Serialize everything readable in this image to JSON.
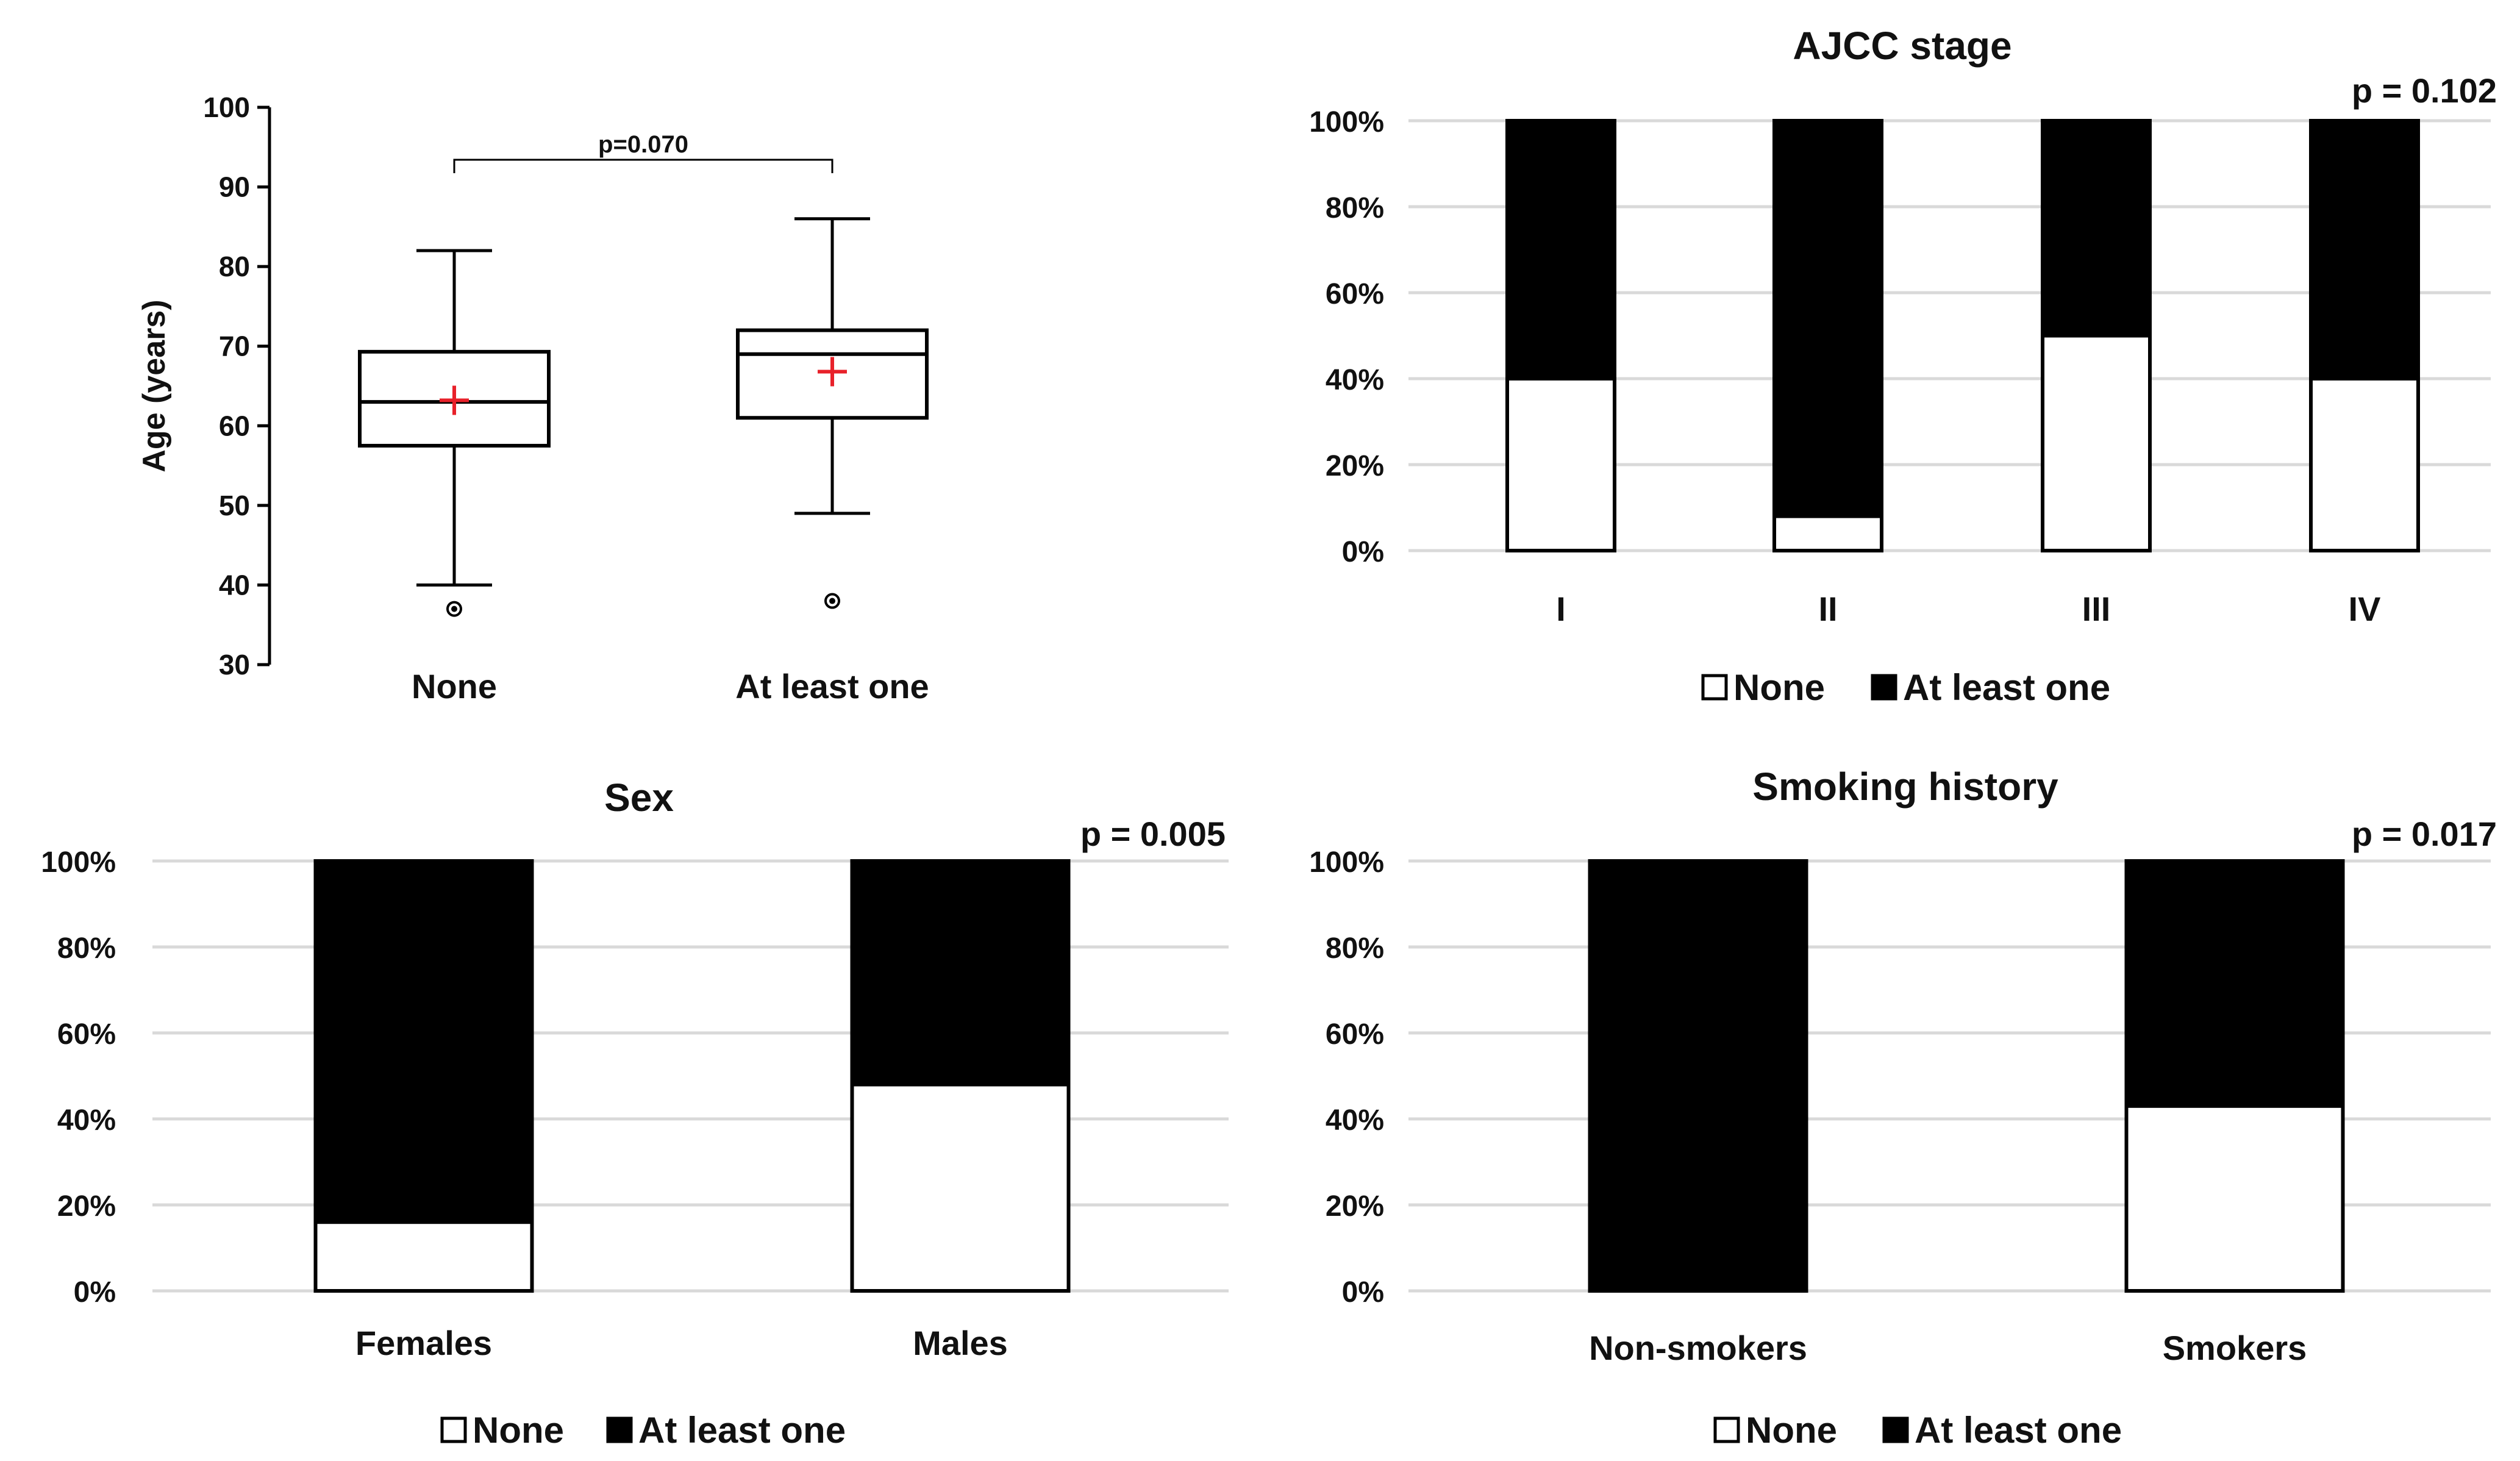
{
  "chart_data": [
    {
      "type": "box",
      "ylabel": "Age (years)",
      "ylim": [
        30,
        100
      ],
      "yticks": [
        30,
        40,
        50,
        60,
        70,
        80,
        90,
        100
      ],
      "groups": [
        {
          "label": "None",
          "min": 40,
          "q1": 57.5,
          "median": 63,
          "q3": 69.3,
          "max": 82,
          "mean": 63.2,
          "outliers": [
            37
          ]
        },
        {
          "label": "At least one",
          "min": 49,
          "q1": 61,
          "median": 69,
          "q3": 72,
          "max": 86,
          "mean": 66.8,
          "outliers": [
            38
          ]
        }
      ],
      "comparison": "p=0.070",
      "colors": {
        "box_edge": "#000000",
        "mean_marker": "#e8212a",
        "box_fill": "#ffffff"
      }
    },
    {
      "type": "stacked_bar_100",
      "title": "AJCC stage",
      "p_value": "p = 0.102",
      "categories": [
        "I",
        "II",
        "III",
        "IV"
      ],
      "series": [
        {
          "name": "None",
          "values": [
            40,
            8,
            50,
            40
          ],
          "color": "#ffffff"
        },
        {
          "name": "At least one",
          "values": [
            60,
            92,
            50,
            60
          ],
          "color": "#000000"
        }
      ],
      "yticks": [
        "0%",
        "20%",
        "40%",
        "60%",
        "80%",
        "100%"
      ],
      "ylim": [
        0,
        100
      ],
      "legend": "bottom"
    },
    {
      "type": "stacked_bar_100",
      "title": "Sex",
      "p_value": "p = 0.005",
      "categories": [
        "Females",
        "Males"
      ],
      "series": [
        {
          "name": "None",
          "values": [
            16,
            48
          ],
          "color": "#ffffff"
        },
        {
          "name": "At least one",
          "values": [
            84,
            52
          ],
          "color": "#000000"
        }
      ],
      "yticks": [
        "0%",
        "20%",
        "40%",
        "60%",
        "80%",
        "100%"
      ],
      "ylim": [
        0,
        100
      ],
      "legend": "bottom"
    },
    {
      "type": "stacked_bar_100",
      "title": "Smoking history",
      "p_value": "p = 0.017",
      "categories": [
        "Non-smokers",
        "Smokers"
      ],
      "series": [
        {
          "name": "None",
          "values": [
            0,
            43
          ],
          "color": "#ffffff"
        },
        {
          "name": "At least one",
          "values": [
            100,
            57
          ],
          "color": "#000000"
        }
      ],
      "yticks": [
        "0%",
        "20%",
        "40%",
        "60%",
        "80%",
        "100%"
      ],
      "ylim": [
        0,
        100
      ],
      "legend": "bottom"
    }
  ],
  "colors": {
    "grid": "#d9d9d9",
    "axis": "#000000",
    "bar_edge": "#000000"
  }
}
